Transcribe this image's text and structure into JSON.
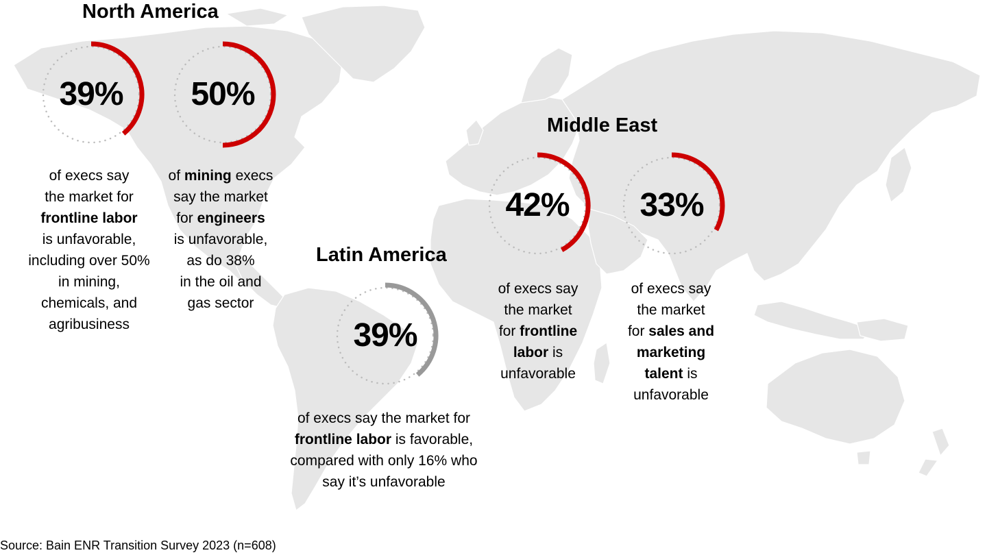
{
  "colors": {
    "unfavorable_arc": "#cc0000",
    "favorable_arc": "#999999",
    "dotted_ring": "#bbbbbb",
    "map_land": "#e6e6e6"
  },
  "icons": {
    "background": "world-map"
  },
  "regions": [
    {
      "title": "North America",
      "stats": [
        {
          "value": "39%",
          "fraction": 0.39,
          "sentiment": "unfavorable",
          "lines": [
            [
              {
                "t": "of execs say",
                "b": false
              }
            ],
            [
              {
                "t": "the market for",
                "b": false
              }
            ],
            [
              {
                "t": "frontline labor",
                "b": true
              }
            ],
            [
              {
                "t": "is unfavorable,",
                "b": false
              }
            ],
            [
              {
                "t": "including over 50%",
                "b": false
              }
            ],
            [
              {
                "t": "in mining,",
                "b": false
              }
            ],
            [
              {
                "t": "chemicals, and",
                "b": false
              }
            ],
            [
              {
                "t": "agribusiness",
                "b": false
              }
            ]
          ]
        },
        {
          "value": "50%",
          "fraction": 0.5,
          "sentiment": "unfavorable",
          "lines": [
            [
              {
                "t": "of ",
                "b": false
              },
              {
                "t": "mining",
                "b": true
              },
              {
                "t": " execs",
                "b": false
              }
            ],
            [
              {
                "t": "say the market",
                "b": false
              }
            ],
            [
              {
                "t": "for ",
                "b": false
              },
              {
                "t": "engineers",
                "b": true
              }
            ],
            [
              {
                "t": "is unfavorable,",
                "b": false
              }
            ],
            [
              {
                "t": "as do 38%",
                "b": false
              }
            ],
            [
              {
                "t": "in the oil and",
                "b": false
              }
            ],
            [
              {
                "t": "gas sector",
                "b": false
              }
            ]
          ]
        }
      ]
    },
    {
      "title": "Latin America",
      "stats": [
        {
          "value": "39%",
          "fraction": 0.39,
          "sentiment": "favorable",
          "lines": [
            [
              {
                "t": "of execs say the market for",
                "b": false
              }
            ],
            [
              {
                "t": "frontline labor",
                "b": true
              },
              {
                "t": " is favorable,",
                "b": false
              }
            ],
            [
              {
                "t": "compared with only 16% who",
                "b": false
              }
            ],
            [
              {
                "t": "say it’s unfavorable",
                "b": false
              }
            ]
          ]
        }
      ]
    },
    {
      "title": "Middle East",
      "stats": [
        {
          "value": "42%",
          "fraction": 0.42,
          "sentiment": "unfavorable",
          "lines": [
            [
              {
                "t": "of execs say",
                "b": false
              }
            ],
            [
              {
                "t": "the market",
                "b": false
              }
            ],
            [
              {
                "t": "for ",
                "b": false
              },
              {
                "t": "frontline",
                "b": true
              }
            ],
            [
              {
                "t": "labor",
                "b": true
              },
              {
                "t": " is",
                "b": false
              }
            ],
            [
              {
                "t": "unfavorable",
                "b": false
              }
            ]
          ]
        },
        {
          "value": "33%",
          "fraction": 0.33,
          "sentiment": "unfavorable",
          "lines": [
            [
              {
                "t": "of execs say",
                "b": false
              }
            ],
            [
              {
                "t": "the market",
                "b": false
              }
            ],
            [
              {
                "t": "for ",
                "b": false
              },
              {
                "t": "sales and",
                "b": true
              }
            ],
            [
              {
                "t": "marketing",
                "b": true
              }
            ],
            [
              {
                "t": "talent",
                "b": true
              },
              {
                "t": " is",
                "b": false
              }
            ],
            [
              {
                "t": "unfavorable",
                "b": false
              }
            ]
          ]
        }
      ]
    }
  ],
  "source": "Source: Bain ENR Transition Survey 2023 (n=608)"
}
